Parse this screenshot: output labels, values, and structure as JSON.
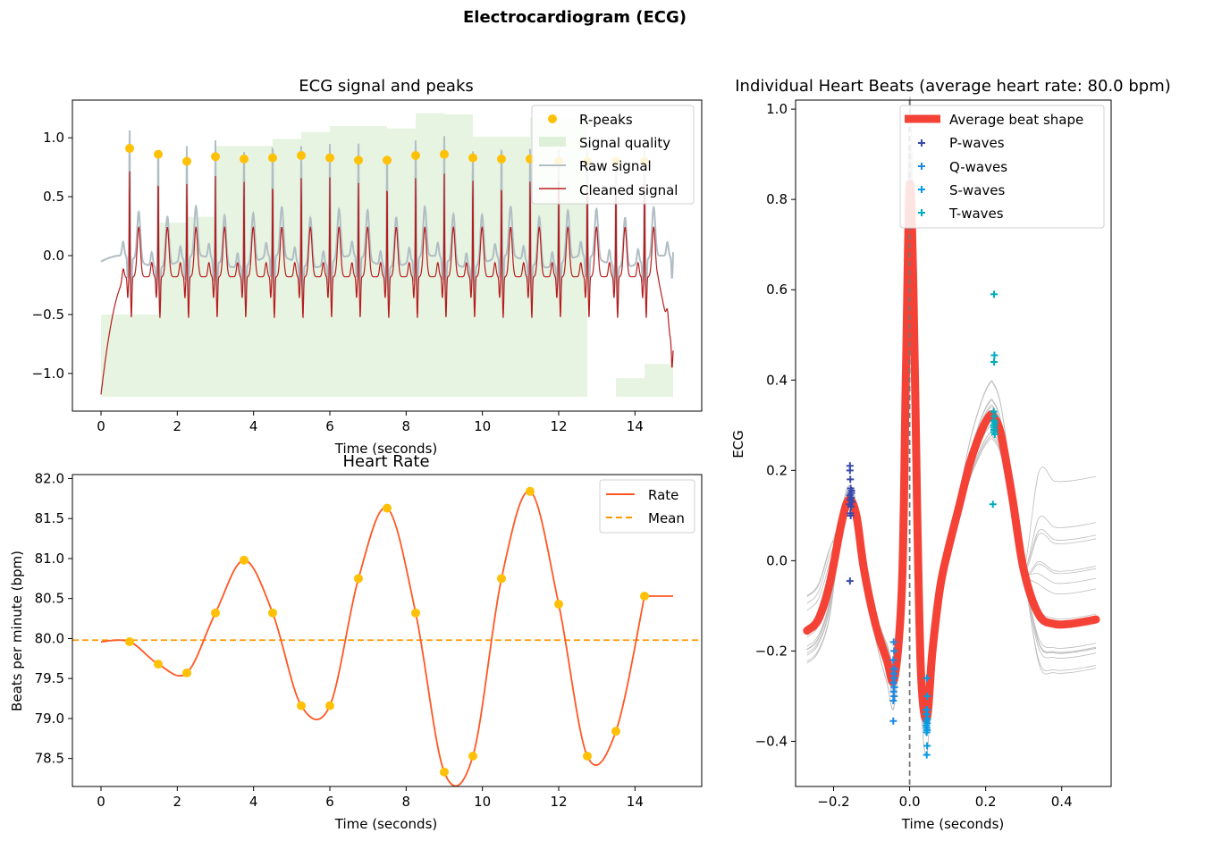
{
  "figure": {
    "suptitle": "Electrocardiogram (ECG)"
  },
  "chart_data": [
    {
      "id": "ecg",
      "type": "line",
      "title": "ECG signal and peaks",
      "xlabel": "Time (seconds)",
      "ylabel": "",
      "xlim": [
        -0.75,
        15.75
      ],
      "ylim": [
        -1.32,
        1.32
      ],
      "xticks": [
        0,
        2,
        4,
        6,
        8,
        10,
        12,
        14
      ],
      "yticks": [
        -1.0,
        -0.5,
        0.0,
        0.5,
        1.0
      ],
      "xtick_labels": [
        "0",
        "2",
        "4",
        "6",
        "8",
        "10",
        "12",
        "14"
      ],
      "ytick_labels": [
        "−1.0",
        "−0.5",
        "0.0",
        "0.5",
        "1.0"
      ],
      "legend_position": "top-right",
      "legend": [
        "R-peaks",
        "Signal quality",
        "Raw signal",
        "Cleaned signal"
      ],
      "colors": {
        "rpeaks": "#FFC107",
        "quality": "#DFF0D8",
        "raw": "#B0BEC5",
        "cleaned": "#E53935",
        "cleaned_dark": "#B71C1C"
      },
      "rpeaks": {
        "x": [
          0.75,
          1.5,
          2.25,
          3.0,
          3.75,
          4.5,
          5.25,
          6.0,
          6.75,
          7.5,
          8.25,
          9.0,
          9.75,
          10.5,
          11.25,
          12.0,
          12.75,
          13.5,
          14.25
        ],
        "y": [
          0.91,
          0.86,
          0.8,
          0.84,
          0.82,
          0.83,
          0.85,
          0.83,
          0.81,
          0.81,
          0.85,
          0.86,
          0.83,
          0.82,
          0.82,
          0.8,
          0.8,
          0.8,
          0.8
        ]
      },
      "signal_quality": {
        "x": [
          0,
          1.5,
          2.25,
          3.0,
          4.5,
          5.25,
          6.0,
          7.5,
          8.25,
          9.0,
          9.75,
          10.5,
          11.25,
          12.0,
          12.75,
          13.5,
          14.25,
          15.0
        ],
        "y": [
          -0.5,
          0.28,
          0.33,
          0.93,
          0.99,
          1.05,
          1.1,
          1.08,
          1.21,
          1.2,
          1.01,
          1.01,
          1.17,
          1.17,
          -1.2,
          -1.04,
          -0.92,
          -0.92
        ]
      },
      "baseline": -1.2
    },
    {
      "id": "hr",
      "type": "line",
      "title": "Heart Rate",
      "xlabel": "Time (seconds)",
      "ylabel": "Beats per minute (bpm)",
      "xlim": [
        -0.75,
        15.75
      ],
      "ylim": [
        78.15,
        82.05
      ],
      "xticks": [
        0,
        2,
        4,
        6,
        8,
        10,
        12,
        14
      ],
      "yticks": [
        78.5,
        79.0,
        79.5,
        80.0,
        80.5,
        81.0,
        81.5,
        82.0
      ],
      "xtick_labels": [
        "0",
        "2",
        "4",
        "6",
        "8",
        "10",
        "12",
        "14"
      ],
      "ytick_labels": [
        "78.5",
        "79.0",
        "79.5",
        "80.0",
        "80.5",
        "81.0",
        "81.5",
        "82.0"
      ],
      "legend_position": "top-right",
      "legend": [
        "Rate",
        "Mean"
      ],
      "colors": {
        "rate": "#FF5722",
        "mean": "#FF9800",
        "points": "#FFC107"
      },
      "mean": 79.98,
      "points": {
        "x": [
          0.75,
          1.5,
          2.25,
          3.0,
          3.75,
          4.5,
          5.25,
          6.0,
          6.75,
          7.5,
          8.25,
          9.0,
          9.75,
          10.5,
          11.25,
          12.0,
          12.75,
          13.5,
          14.25
        ],
        "y": [
          79.96,
          79.68,
          79.57,
          80.32,
          80.98,
          80.32,
          79.16,
          79.16,
          80.75,
          81.63,
          80.32,
          78.33,
          78.53,
          80.75,
          81.84,
          80.43,
          78.53,
          78.84,
          80.53
        ]
      },
      "start": [
        0,
        79.96
      ],
      "end": [
        15.0,
        80.53
      ]
    },
    {
      "id": "beats",
      "type": "line",
      "title": "Individual Heart Beats (average heart rate: 80.0 bpm)",
      "xlabel": "Time (seconds)",
      "ylabel": "ECG",
      "xlim": [
        -0.3,
        0.53
      ],
      "ylim": [
        -0.5,
        1.02
      ],
      "xticks": [
        -0.2,
        0.0,
        0.2,
        0.4
      ],
      "yticks": [
        -0.4,
        -0.2,
        0.0,
        0.2,
        0.4,
        0.6,
        0.8,
        1.0
      ],
      "xtick_labels": [
        "−0.2",
        "0.0",
        "0.2",
        "0.4"
      ],
      "ytick_labels": [
        "−0.4",
        "−0.2",
        "0.0",
        "0.2",
        "0.4",
        "0.6",
        "0.8",
        "1.0"
      ],
      "legend_position": "top-right",
      "legend": [
        "Average beat shape",
        "P-waves",
        "Q-waves",
        "S-waves",
        "T-waves"
      ],
      "colors": {
        "average": "#F44336",
        "pwaves": "#3949AB",
        "qwaves": "#1E88E5",
        "swaves": "#039BE5",
        "twaves": "#00ACC1",
        "beats": "#BDBDBD",
        "vline": "#777777"
      },
      "average": {
        "x": [
          -0.27,
          -0.24,
          -0.21,
          -0.18,
          -0.16,
          -0.14,
          -0.12,
          -0.09,
          -0.06,
          -0.04,
          -0.02,
          -0.01,
          0.0,
          0.01,
          0.02,
          0.03,
          0.045,
          0.06,
          0.08,
          0.1,
          0.13,
          0.16,
          0.19,
          0.21,
          0.22,
          0.24,
          0.27,
          0.3,
          0.34,
          0.38,
          0.42,
          0.46,
          0.49
        ],
        "y": [
          -0.155,
          -0.13,
          -0.05,
          0.08,
          0.135,
          0.1,
          -0.02,
          -0.14,
          -0.22,
          -0.26,
          -0.05,
          0.4,
          0.83,
          0.6,
          0.1,
          -0.25,
          -0.35,
          -0.2,
          -0.06,
          0.02,
          0.12,
          0.22,
          0.29,
          0.32,
          0.32,
          0.28,
          0.14,
          -0.02,
          -0.12,
          -0.14,
          -0.14,
          -0.135,
          -0.13
        ]
      },
      "pwaves": {
        "x": [
          -0.157,
          -0.157,
          -0.156,
          -0.155,
          -0.153,
          -0.155,
          -0.157,
          -0.154,
          -0.156,
          -0.152,
          -0.158,
          -0.154,
          -0.156,
          -0.155,
          -0.153,
          -0.157
        ],
        "y": [
          0.21,
          0.2,
          0.18,
          0.16,
          0.155,
          0.15,
          0.145,
          0.14,
          0.135,
          0.13,
          0.125,
          0.12,
          0.105,
          0.1,
          0.15,
          -0.045
        ]
      },
      "qwaves": {
        "x": [
          -0.042,
          -0.041,
          -0.043,
          -0.04,
          -0.042,
          -0.041,
          -0.043,
          -0.04,
          -0.042,
          -0.041,
          -0.043,
          -0.042,
          -0.04,
          -0.041,
          -0.042,
          -0.043
        ],
        "y": [
          -0.18,
          -0.2,
          -0.22,
          -0.24,
          -0.25,
          -0.26,
          -0.27,
          -0.28,
          -0.29,
          -0.3,
          -0.31,
          -0.27,
          -0.26,
          -0.25,
          -0.24,
          -0.355
        ]
      },
      "swaves": {
        "x": [
          0.045,
          0.046,
          0.044,
          0.045,
          0.047,
          0.045,
          0.046,
          0.044,
          0.045,
          0.046,
          0.045,
          0.044,
          0.046,
          0.045,
          0.046,
          0.045
        ],
        "y": [
          -0.26,
          -0.3,
          -0.33,
          -0.34,
          -0.35,
          -0.355,
          -0.36,
          -0.365,
          -0.37,
          -0.375,
          -0.38,
          -0.34,
          -0.33,
          -0.35,
          -0.41,
          -0.43
        ]
      },
      "twaves": {
        "x": [
          0.222,
          0.223,
          0.222,
          0.221,
          0.223,
          0.222,
          0.224,
          0.221,
          0.222,
          0.223,
          0.222,
          0.221,
          0.223,
          0.222,
          0.224,
          0.219
        ],
        "y": [
          0.59,
          0.455,
          0.44,
          0.33,
          0.32,
          0.31,
          0.305,
          0.3,
          0.295,
          0.29,
          0.285,
          0.31,
          0.3,
          0.29,
          0.28,
          0.125
        ]
      }
    }
  ]
}
